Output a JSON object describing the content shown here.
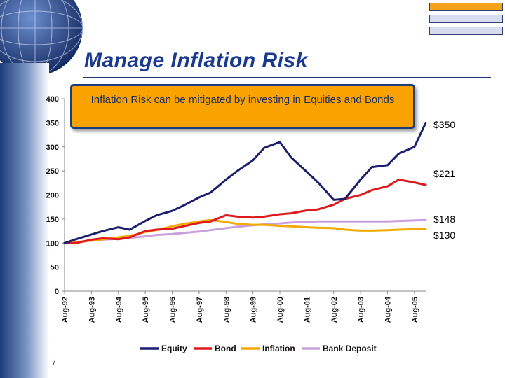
{
  "slide": {
    "title": "Manage Inflation Risk",
    "callout": "Inflation Risk can be mitigated by investing in Equities and Bonds",
    "page_number": "7",
    "nav_colors": [
      "#f4a11b",
      "#d8dcef",
      "#d8dcef"
    ]
  },
  "chart_data": {
    "type": "line",
    "title": "",
    "xlabel": "",
    "ylabel": "",
    "ylim": [
      0,
      400
    ],
    "yticks": [
      "0",
      "50",
      "100",
      "150",
      "200",
      "250",
      "300",
      "350",
      "400"
    ],
    "xticks": [
      "Aug-92",
      "Aug-93",
      "Aug-94",
      "Aug-95",
      "Aug-96",
      "Aug-97",
      "Aug-98",
      "Aug-99",
      "Aug-00",
      "Aug-01",
      "Aug-02",
      "Aug-03",
      "Aug-04",
      "Aug-05"
    ],
    "grid": false,
    "legend": "bottom",
    "x": [
      1992.58,
      1993.0,
      1993.58,
      1994.0,
      1994.58,
      1995.0,
      1995.58,
      1996.0,
      1996.58,
      1997.0,
      1997.58,
      1998.0,
      1998.58,
      1999.0,
      1999.58,
      2000.0,
      2000.58,
      2001.0,
      2001.58,
      2002.0,
      2002.58,
      2003.0,
      2003.58,
      2004.0,
      2004.58,
      2005.0,
      2005.58,
      2006.0
    ],
    "series": [
      {
        "name": "Equity",
        "color": "#1a1f6e",
        "values": [
          100,
          108,
          118,
          125,
          133,
          128,
          146,
          158,
          167,
          178,
          195,
          205,
          232,
          250,
          272,
          298,
          310,
          278,
          248,
          226,
          190,
          192,
          232,
          258,
          262,
          286,
          300,
          350
        ]
      },
      {
        "name": "Bond",
        "color": "#e0191f",
        "values": [
          100,
          100,
          107,
          110,
          108,
          112,
          125,
          128,
          130,
          135,
          142,
          145,
          158,
          155,
          153,
          155,
          160,
          162,
          168,
          170,
          180,
          192,
          200,
          210,
          218,
          232,
          226,
          221
        ]
      },
      {
        "name": "Inflation",
        "color": "#f2a900",
        "values": [
          100,
          102,
          105,
          108,
          112,
          115,
          123,
          127,
          135,
          140,
          145,
          148,
          144,
          140,
          138,
          138,
          136,
          135,
          133,
          132,
          131,
          128,
          126,
          126,
          127,
          128,
          129,
          130
        ]
      },
      {
        "name": "Bank Deposit",
        "color": "#c9a0dc",
        "values": [
          100,
          102,
          105,
          107,
          109,
          111,
          114,
          117,
          119,
          121,
          124,
          127,
          131,
          134,
          137,
          139,
          141,
          143,
          144,
          145,
          145,
          145,
          145,
          145,
          145,
          146,
          147,
          148
        ]
      }
    ],
    "end_labels": [
      {
        "text": "$350",
        "value": 350
      },
      {
        "text": "$221",
        "value": 221
      },
      {
        "text": "$148",
        "value": 148
      },
      {
        "text": "$130",
        "value": 130
      }
    ]
  }
}
